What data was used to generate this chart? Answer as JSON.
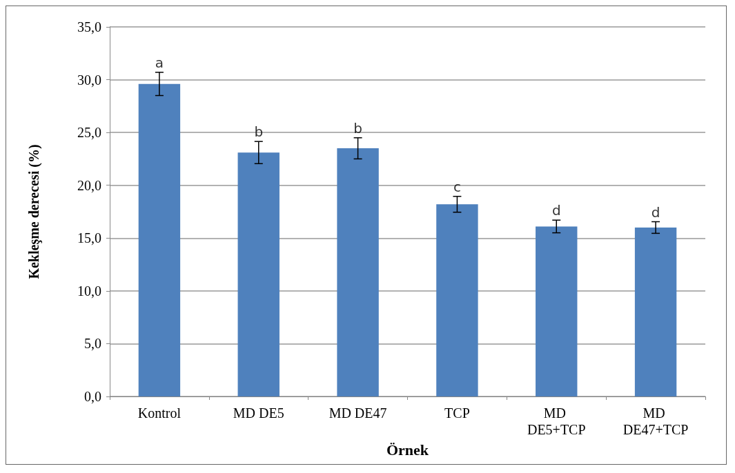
{
  "chart_data": {
    "type": "bar",
    "categories": [
      "Kontrol",
      "MD DE5",
      "MD DE47",
      "TCP",
      "MD DE5+TCP",
      "MD DE47+TCP"
    ],
    "values": [
      29.6,
      23.1,
      23.5,
      18.2,
      16.1,
      16.0
    ],
    "errors": [
      1.1,
      1.05,
      1.0,
      0.75,
      0.6,
      0.55
    ],
    "color": "#4f81bd",
    "xlabel": "Örnek",
    "ylabel": "Kekleşme derecesi (%)",
    "ylim": [
      0,
      35
    ],
    "yticks": [
      {
        "value": 0,
        "label": "0,0"
      },
      {
        "value": 5,
        "label": "5,0"
      },
      {
        "value": 10,
        "label": "10,0"
      },
      {
        "value": 15,
        "label": "15,0"
      },
      {
        "value": 20,
        "label": "20,0"
      },
      {
        "value": 25,
        "label": "25,0"
      },
      {
        "value": 30,
        "label": "30,0"
      },
      {
        "value": 35,
        "label": "35,0"
      }
    ],
    "grid": "y",
    "annotations": [
      {
        "text": "a",
        "x": "Kontrol",
        "y": 30.7
      },
      {
        "text": "b",
        "x": "MD DE5",
        "y": 24.15
      },
      {
        "text": "b",
        "x": "MD DE47",
        "y": 24.5
      },
      {
        "text": "c",
        "x": "TCP",
        "y": 18.95
      },
      {
        "text": "d",
        "x": "MD DE5+TCP",
        "y": 16.7
      },
      {
        "text": "d",
        "x": "MD DE47+TCP",
        "y": 16.55
      }
    ]
  }
}
